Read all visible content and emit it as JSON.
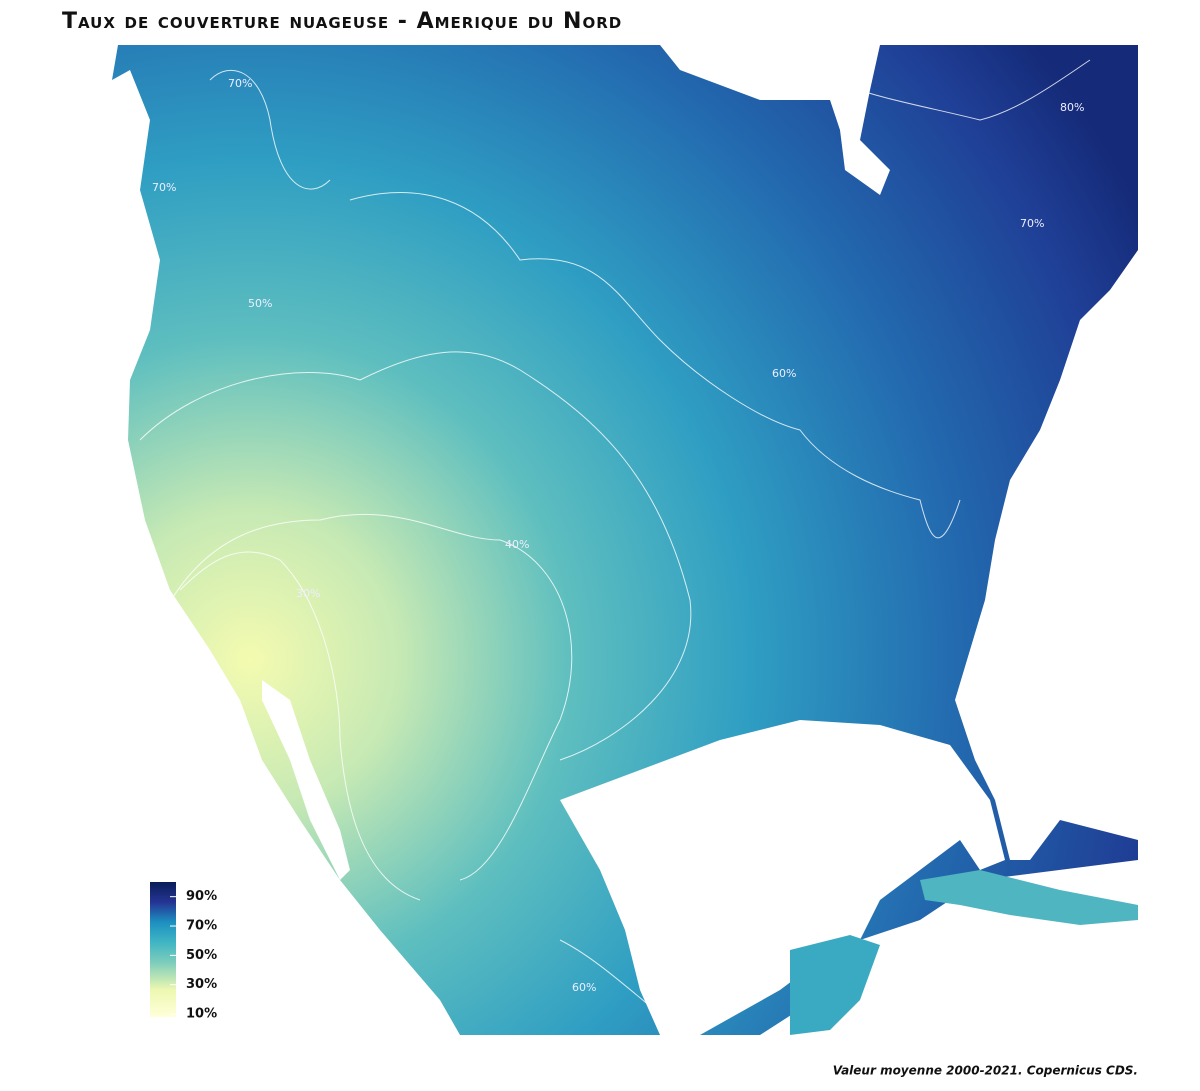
{
  "title": "Taux de couverture nuageuse - Amerique du Nord",
  "caption": "Valeur moyenne 2000-2021. Copernicus CDS.",
  "legend": {
    "lim": [
      8,
      100
    ],
    "ticks": [
      {
        "value": 90,
        "label": "90%"
      },
      {
        "value": 70,
        "label": "70%"
      },
      {
        "value": 50,
        "label": "50%"
      },
      {
        "value": 30,
        "label": "30%"
      },
      {
        "value": 10,
        "label": "10%"
      }
    ]
  },
  "contour_labels": [
    "70%",
    "80%",
    "70%",
    "50%",
    "60%",
    "40%",
    "30%",
    "60%",
    "70%"
  ]
}
